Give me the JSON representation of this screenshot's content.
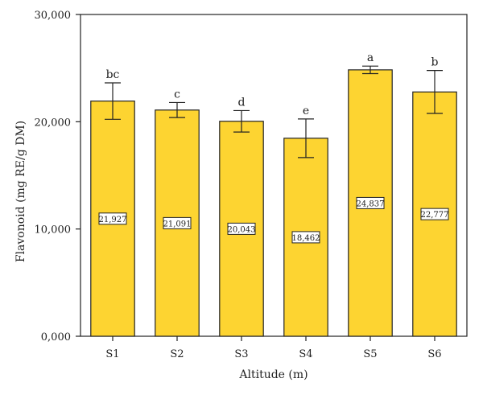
{
  "chart_data": {
    "type": "bar",
    "title": "",
    "xlabel": "Altitude (m)",
    "ylabel": "Flavonoid (mg RE/g DM)",
    "ylim": [
      0,
      30000
    ],
    "yticks": [
      0,
      10000,
      20000,
      30000
    ],
    "ytick_labels": [
      "0,000",
      "10,000",
      "20,000",
      "30,000"
    ],
    "grid": false,
    "categories": [
      "S1",
      "S2",
      "S3",
      "S4",
      "S5",
      "S6"
    ],
    "values": [
      21927,
      21091,
      20043,
      18462,
      24837,
      22777
    ],
    "value_labels": [
      "21,927",
      "21,091",
      "20,043",
      "18,462",
      "24,837",
      "22,777"
    ],
    "error": [
      1700,
      700,
      1000,
      1800,
      350,
      2000
    ],
    "significance_letters": [
      "bc",
      "c",
      "d",
      "e",
      "a",
      "b"
    ],
    "bar_color": "#FDD431",
    "bar_edge_color": "#222222"
  }
}
